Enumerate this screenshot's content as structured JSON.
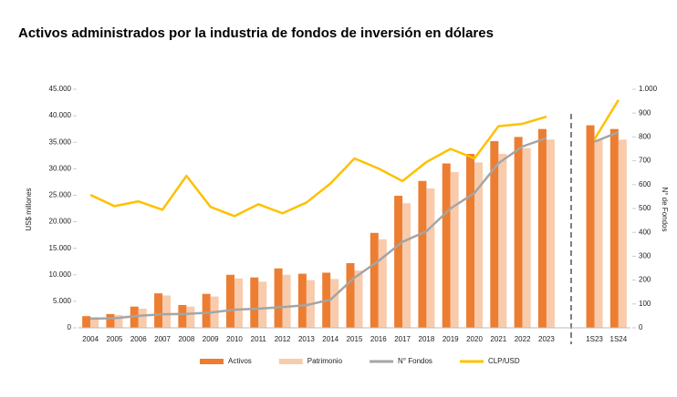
{
  "chart_data": {
    "type": "bar-line",
    "title": "Activos administrados por la industria de fondos de inversión en dólares",
    "y_label": "US$ millones",
    "y2_label": "N° de Fondos",
    "categories": [
      "2004",
      "2005",
      "2006",
      "2007",
      "2008",
      "2009",
      "2010",
      "2011",
      "2012",
      "2013",
      "2014",
      "2015",
      "2016",
      "2017",
      "2018",
      "2019",
      "2020",
      "2021",
      "2022",
      "2023",
      null,
      "1S23",
      "1S24"
    ],
    "series": [
      {
        "name": "Activos",
        "kind": "bar",
        "color": "#ed7d31",
        "values": [
          2200,
          2600,
          4000,
          6500,
          4300,
          6400,
          10000,
          9500,
          11200,
          10200,
          10400,
          12200,
          17900,
          24900,
          27700,
          31000,
          32800,
          35200,
          36000,
          37500,
          null,
          38200,
          37500
        ]
      },
      {
        "name": "Patrimonio",
        "kind": "bar",
        "color": "#f8cbad",
        "values": [
          2000,
          2400,
          3600,
          6100,
          4000,
          5900,
          9300,
          8700,
          10000,
          9000,
          9200,
          10800,
          16700,
          23500,
          26300,
          29400,
          31200,
          32800,
          33900,
          35500,
          null,
          35500,
          35500
        ]
      },
      {
        "name": "N° Fondos",
        "kind": "line",
        "axis": "y2",
        "color": "#a5a5a5",
        "values": [
          38,
          40,
          50,
          57,
          58,
          64,
          76,
          80,
          87,
          95,
          118,
          210,
          280,
          360,
          405,
          500,
          565,
          690,
          760,
          795,
          null,
          780,
          820
        ]
      },
      {
        "name": "CLP/USD",
        "kind": "line",
        "axis": "y2",
        "color": "#ffc000",
        "values": [
          557,
          510,
          530,
          495,
          637,
          507,
          468,
          518,
          480,
          525,
          605,
          710,
          668,
          615,
          695,
          750,
          710,
          845,
          855,
          885,
          null,
          790,
          955
        ]
      }
    ],
    "ylim": [
      0,
      45000
    ],
    "yticks": [
      0,
      {
        "value": 5000,
        "label": "5.000"
      },
      {
        "value": 10000,
        "label": "10.000"
      },
      {
        "value": 15000,
        "label": "15.000"
      },
      {
        "value": 20000,
        "label": "20.000"
      },
      {
        "value": 25000,
        "label": "25.000"
      },
      {
        "value": 30000,
        "label": "30.000"
      },
      {
        "value": 35000,
        "label": "35.000"
      },
      {
        "value": 40000,
        "label": "40.000"
      },
      {
        "value": 45000,
        "label": "45.000"
      }
    ],
    "y2lim": [
      0,
      1000
    ],
    "y2ticks": [
      0,
      100,
      200,
      300,
      400,
      500,
      600,
      700,
      800,
      900,
      {
        "value": 1000,
        "label": "1.000"
      }
    ],
    "legend": "bottom"
  }
}
